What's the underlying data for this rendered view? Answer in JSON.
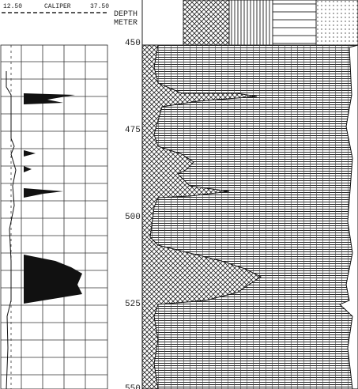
{
  "header": {
    "left_min": "12.50",
    "curve": "CALIPER",
    "left_max": "37.50",
    "depth_title": "DEPTH",
    "depth_unit": "METER"
  },
  "depth_labels": [
    "450",
    "475",
    "500",
    "525",
    "550"
  ]
}
